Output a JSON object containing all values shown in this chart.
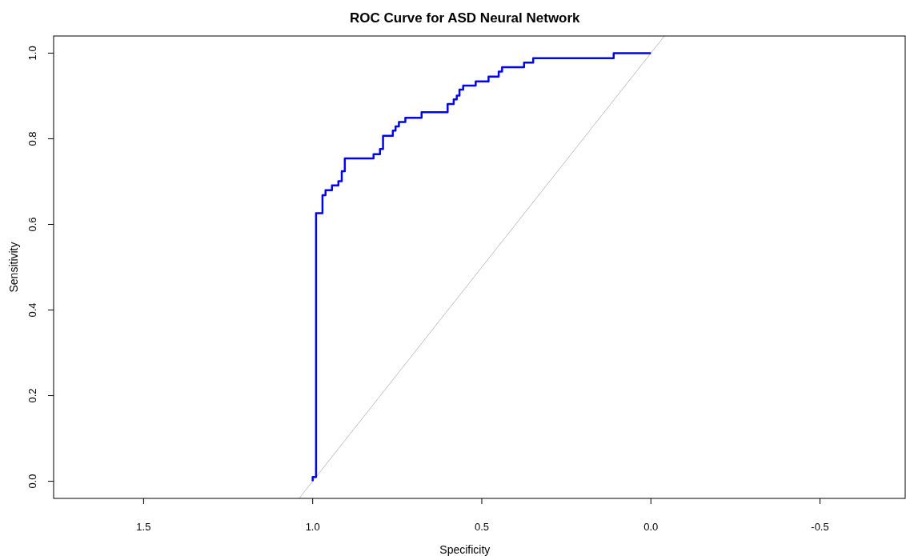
{
  "chart_data": {
    "type": "step",
    "title": "ROC Curve for ASD Neural Network",
    "xlabel": "Specificity",
    "ylabel": "Sensitivity",
    "xlim": [
      1.766,
      -0.752
    ],
    "ylim": [
      -0.04,
      1.04
    ],
    "xticks": [
      1.5,
      {
        "value": 1,
        "label": "1.0"
      },
      0.5,
      {
        "value": 0,
        "label": "0.0"
      },
      -0.5
    ],
    "yticks": [
      {
        "value": 0,
        "label": "0.0"
      },
      0.2,
      0.4,
      0.6,
      0.8,
      {
        "value": 1,
        "label": "1.0"
      }
    ],
    "grid": false,
    "series": [
      {
        "type": "line",
        "color": "#bebebe",
        "x": [
          1.04,
          -0.04
        ],
        "values": [
          -0.04,
          1.04
        ]
      },
      {
        "color": "#0000ff",
        "x": [
          1,
          1,
          0.99,
          0.971,
          0.962,
          0.943,
          0.924,
          0.914,
          0.905,
          0.82,
          0.801,
          0.792,
          0.763,
          0.755,
          0.745,
          0.726,
          0.678,
          0.601,
          0.583,
          0.574,
          0.566,
          0.555,
          0.518,
          0.48,
          0.45,
          0.44,
          0.375,
          0.348,
          0.11,
          0
        ],
        "values": [
          0,
          0.01,
          0.626,
          0.668,
          0.68,
          0.691,
          0.701,
          0.724,
          0.754,
          0.764,
          0.776,
          0.807,
          0.819,
          0.829,
          0.839,
          0.849,
          0.862,
          0.881,
          0.892,
          0.901,
          0.915,
          0.924,
          0.934,
          0.945,
          0.957,
          0.967,
          0.978,
          0.988,
          1,
          1
        ]
      }
    ]
  }
}
